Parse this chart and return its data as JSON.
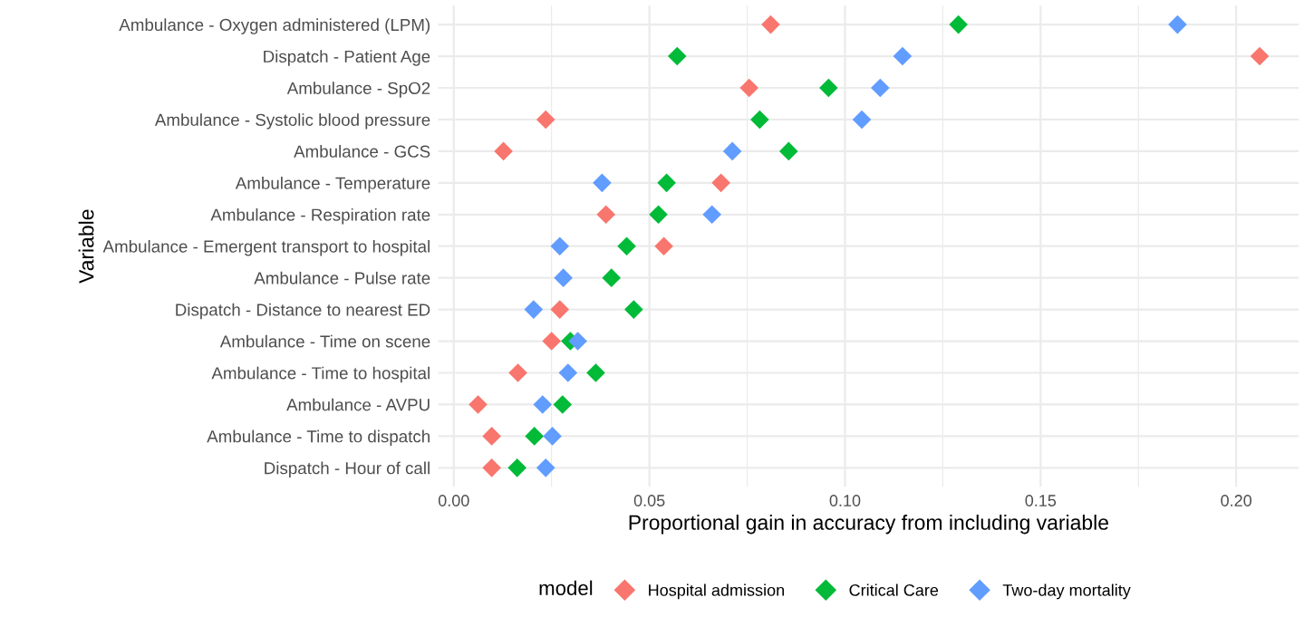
{
  "chart_data": {
    "type": "scatter",
    "orientation": "horizontal",
    "xlabel": "Proportional gain in accuracy from including variable",
    "ylabel": "Variable",
    "legend_title": "model",
    "legend": "bottom",
    "grid": true,
    "marker": "diamond",
    "categories": [
      "Ambulance - Oxygen administered (LPM)",
      "Dispatch - Patient Age",
      "Ambulance - SpO2",
      "Ambulance - Systolic blood pressure",
      "Ambulance - GCS",
      "Ambulance - Temperature",
      "Ambulance - Respiration rate",
      "Ambulance - Emergent transport to hospital",
      "Ambulance - Pulse rate",
      "Dispatch - Distance to nearest ED",
      "Ambulance - Time on scene",
      "Ambulance - Time to hospital",
      "Ambulance - AVPU",
      "Ambulance - Time to dispatch",
      "Dispatch - Hour of call"
    ],
    "xlim": [
      -0.004,
      0.216
    ],
    "xticks": [
      {
        "value": 0,
        "label": "0.00"
      },
      0.05,
      {
        "value": 0.1,
        "label": "0.10"
      },
      0.15,
      {
        "value": 0.2,
        "label": "0.20"
      }
    ],
    "series": [
      {
        "name": "Hospital admission",
        "color": "#f8766d",
        "values": [
          0.081,
          0.206,
          0.0755,
          0.0235,
          0.0127,
          0.0683,
          0.0389,
          0.0537,
          null,
          0.0271,
          0.025,
          0.0164,
          0.0062,
          0.0097,
          0.0097
        ]
      },
      {
        "name": "Critical Care",
        "color": "#00ba38",
        "values": [
          0.129,
          0.0571,
          0.0958,
          0.0782,
          0.0856,
          0.0544,
          0.0523,
          0.0442,
          0.0403,
          0.046,
          0.0298,
          0.0363,
          0.0278,
          0.0206,
          0.0162
        ]
      },
      {
        "name": "Two-day mortality",
        "color": "#619cff",
        "values": [
          0.185,
          0.1147,
          0.109,
          0.1043,
          0.0712,
          0.0379,
          0.066,
          0.0271,
          0.028,
          0.0204,
          0.0317,
          0.0292,
          0.0227,
          0.0252,
          0.0235
        ]
      }
    ]
  }
}
